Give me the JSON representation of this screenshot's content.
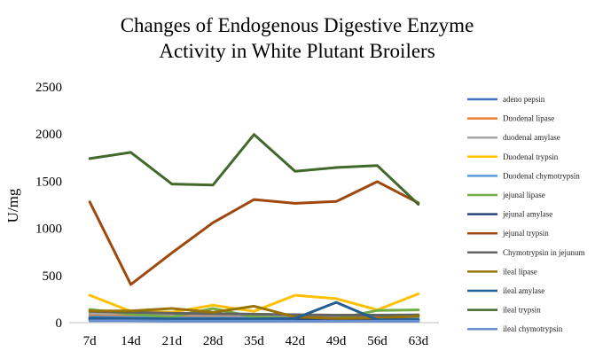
{
  "chart_data": {
    "type": "line",
    "title": [
      "Changes of Endogenous Digestive Enzyme",
      "Activity in White Plutant Broilers"
    ],
    "xlabel": "",
    "ylabel": "U/mg",
    "categories": [
      "7d",
      "14d",
      "21d",
      "28d",
      "35d",
      "42d",
      "49d",
      "56d",
      "63d"
    ],
    "ylim": [
      0,
      2500
    ],
    "yticks": [
      0,
      500,
      1000,
      1500,
      2000,
      2500
    ],
    "grid": false,
    "legend_position": "right",
    "series": [
      {
        "name": "adeno pepsin",
        "color": "#4472C4",
        "values": [
          30,
          30,
          25,
          20,
          20,
          20,
          20,
          20,
          20
        ]
      },
      {
        "name": "Duodenal lipase",
        "color": "#ED7D31",
        "values": [
          80,
          75,
          70,
          60,
          55,
          60,
          60,
          60,
          70
        ]
      },
      {
        "name": "duodenal amylase",
        "color": "#A5A5A5",
        "values": [
          100,
          95,
          90,
          85,
          80,
          80,
          80,
          80,
          85
        ]
      },
      {
        "name": "Duodenal trypsin",
        "color": "#FFC000",
        "values": [
          290,
          120,
          110,
          185,
          120,
          290,
          255,
          135,
          305
        ]
      },
      {
        "name": "Duodenal chymotrypsin",
        "color": "#5B9BD5",
        "values": [
          60,
          55,
          50,
          50,
          50,
          50,
          50,
          50,
          55
        ]
      },
      {
        "name": "jejunal lipase",
        "color": "#70AD47",
        "values": [
          140,
          90,
          60,
          150,
          60,
          45,
          40,
          130,
          135
        ]
      },
      {
        "name": "jejunal  amylase",
        "color": "#264478",
        "values": [
          40,
          40,
          35,
          30,
          30,
          30,
          30,
          30,
          30
        ]
      },
      {
        "name": "jejunal trypsin",
        "color": "#9E480E",
        "values": [
          1280,
          405,
          740,
          1060,
          1305,
          1265,
          1285,
          1495,
          1270
        ]
      },
      {
        "name": "Chymotrypsin in jejunum",
        "color": "#636363",
        "values": [
          120,
          110,
          100,
          95,
          90,
          85,
          80,
          80,
          80
        ]
      },
      {
        "name": "ileal lipase",
        "color": "#997300",
        "values": [
          125,
          125,
          150,
          110,
          175,
          60,
          45,
          50,
          70
        ]
      },
      {
        "name": "ileal amylase",
        "color": "#255E91",
        "values": [
          50,
          45,
          40,
          40,
          40,
          45,
          215,
          30,
          30
        ]
      },
      {
        "name": "ileal trypsin",
        "color": "#43682B",
        "values": [
          1740,
          1805,
          1470,
          1460,
          1995,
          1605,
          1645,
          1665,
          1255
        ]
      },
      {
        "name": "ileal chymotrypsin",
        "color": "#698ED0",
        "values": [
          20,
          20,
          15,
          15,
          15,
          15,
          15,
          15,
          15
        ]
      }
    ]
  }
}
